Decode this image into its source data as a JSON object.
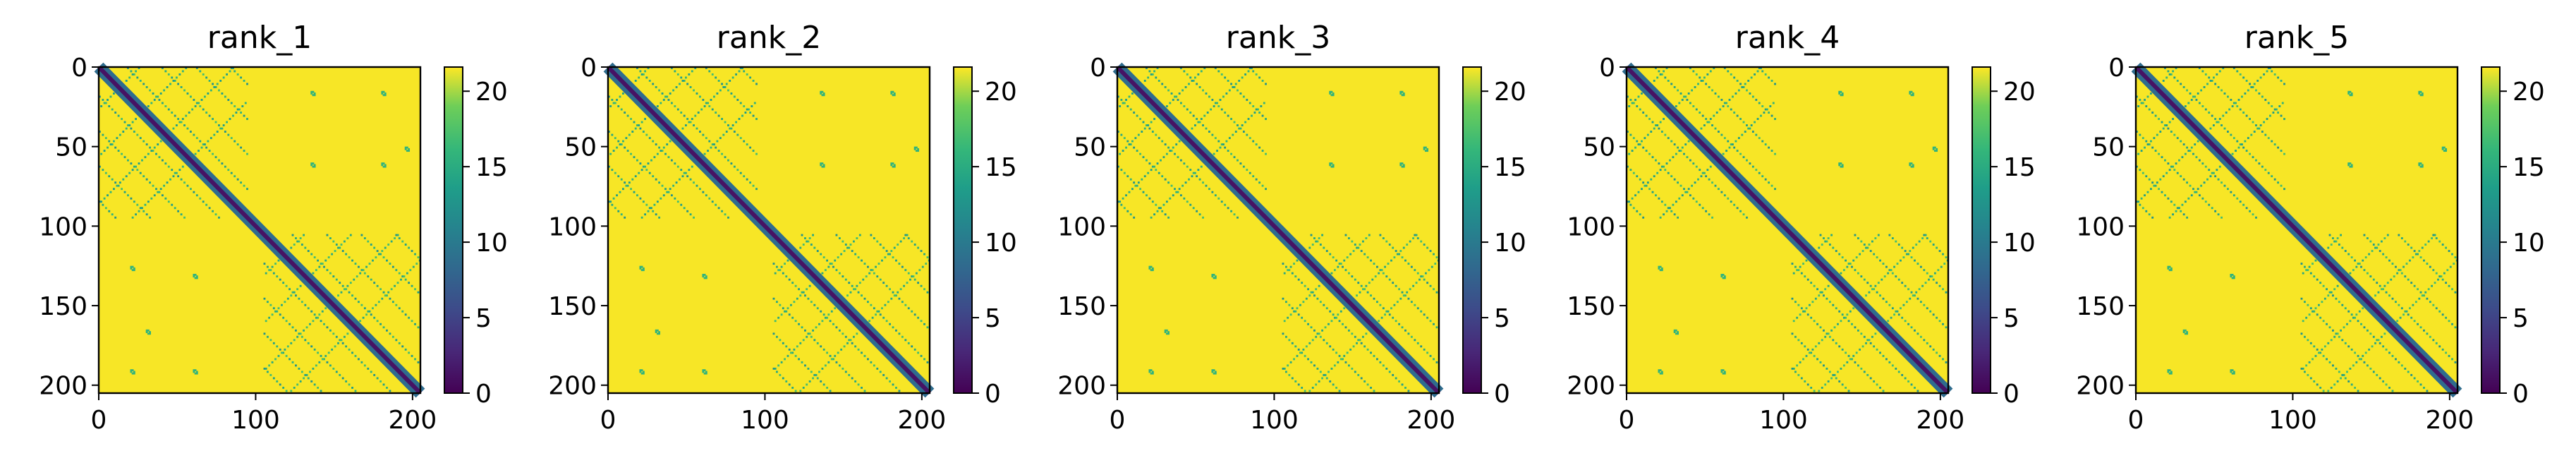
{
  "chart_data": [
    {
      "type": "heatmap",
      "title": "rank_1",
      "x_ticks": [
        "0",
        "100",
        "200"
      ],
      "y_ticks": [
        "0",
        "50",
        "100",
        "150",
        "200"
      ],
      "colorbar_ticks": [
        "0",
        "5",
        "10",
        "15",
        "20"
      ],
      "xlim": [
        0,
        205
      ],
      "ylim": [
        205,
        0
      ],
      "vmin": 0,
      "vmax": 21.6,
      "colormap": "viridis",
      "grid": false
    },
    {
      "type": "heatmap",
      "title": "rank_2",
      "x_ticks": [
        "0",
        "100",
        "200"
      ],
      "y_ticks": [
        "0",
        "50",
        "100",
        "150",
        "200"
      ],
      "colorbar_ticks": [
        "0",
        "5",
        "10",
        "15",
        "20"
      ],
      "xlim": [
        0,
        205
      ],
      "ylim": [
        205,
        0
      ],
      "vmin": 0,
      "vmax": 21.6,
      "colormap": "viridis",
      "grid": false
    },
    {
      "type": "heatmap",
      "title": "rank_3",
      "x_ticks": [
        "0",
        "100",
        "200"
      ],
      "y_ticks": [
        "0",
        "50",
        "100",
        "150",
        "200"
      ],
      "colorbar_ticks": [
        "0",
        "5",
        "10",
        "15",
        "20"
      ],
      "xlim": [
        0,
        205
      ],
      "ylim": [
        205,
        0
      ],
      "vmin": 0,
      "vmax": 21.6,
      "colormap": "viridis",
      "grid": false
    },
    {
      "type": "heatmap",
      "title": "rank_4",
      "x_ticks": [
        "0",
        "100",
        "200"
      ],
      "y_ticks": [
        "0",
        "50",
        "100",
        "150",
        "200"
      ],
      "colorbar_ticks": [
        "0",
        "5",
        "10",
        "15",
        "20"
      ],
      "xlim": [
        0,
        205
      ],
      "ylim": [
        205,
        0
      ],
      "vmin": 0,
      "vmax": 21.6,
      "colormap": "viridis",
      "grid": false
    },
    {
      "type": "heatmap",
      "title": "rank_5",
      "x_ticks": [
        "0",
        "100",
        "200"
      ],
      "y_ticks": [
        "0",
        "50",
        "100",
        "150",
        "200"
      ],
      "colorbar_ticks": [
        "0",
        "5",
        "10",
        "15",
        "20"
      ],
      "xlim": [
        0,
        205
      ],
      "ylim": [
        205,
        0
      ],
      "vmin": 0,
      "vmax": 21.6,
      "colormap": "viridis",
      "grid": false
    }
  ],
  "colors": {
    "high": "#fde725",
    "mid": "#21918c",
    "low": "#440154",
    "diagonal": "#3b528b"
  }
}
